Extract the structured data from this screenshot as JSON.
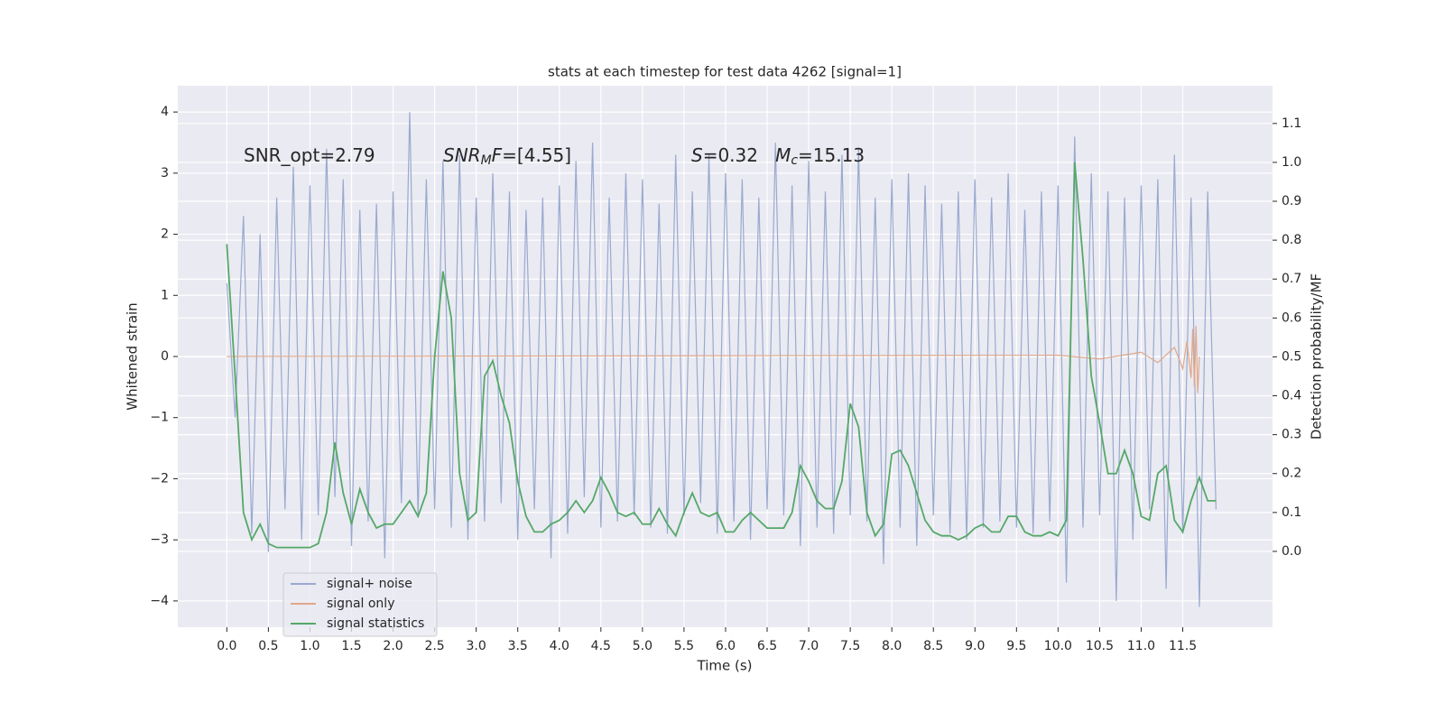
{
  "chart_data": {
    "type": "line",
    "title": "stats at each timestep for test data 4262 [signal=1]",
    "xlabel": "Time (s)",
    "ylabel": "Whitened strain",
    "y2label": "Detection probability/MF",
    "annotations": [
      [
        {
          "text": "SNR_opt=2.79"
        }
      ],
      [
        {
          "text": "SNR",
          "style": "italic"
        },
        {
          "text": "M",
          "style": "italic",
          "sub": true
        },
        {
          "text": "F",
          "style": "italic"
        },
        {
          "text": "=[4.55]"
        }
      ],
      [
        {
          "text": "S",
          "style": "italic"
        },
        {
          "text": "=0.32   "
        },
        {
          "text": "M",
          "style": "italic"
        },
        {
          "text": "c",
          "style": "italic",
          "sub": true
        },
        {
          "text": "=15.13"
        }
      ]
    ],
    "x": [
      0,
      0.1,
      0.2,
      0.3,
      0.4,
      0.5,
      0.6,
      0.7,
      0.8,
      0.9,
      1,
      1.1,
      1.2,
      1.3,
      1.4,
      1.5,
      1.6,
      1.7,
      1.8,
      1.9,
      2,
      2.1,
      2.2,
      2.3,
      2.4,
      2.5,
      2.6,
      2.7,
      2.8,
      2.9,
      3,
      3.1,
      3.2,
      3.3,
      3.4,
      3.5,
      3.6,
      3.7,
      3.8,
      3.9,
      4,
      4.1,
      4.2,
      4.3,
      4.4,
      4.5,
      4.6,
      4.7,
      4.8,
      4.9,
      5,
      5.1,
      5.2,
      5.3,
      5.4,
      5.5,
      5.6,
      5.7,
      5.8,
      5.9,
      6,
      6.1,
      6.2,
      6.3,
      6.4,
      6.5,
      6.6,
      6.7,
      6.8,
      6.9,
      7,
      7.1,
      7.2,
      7.3,
      7.4,
      7.5,
      7.6,
      7.7,
      7.8,
      7.9,
      8,
      8.1,
      8.2,
      8.3,
      8.4,
      8.5,
      8.6,
      8.7,
      8.8,
      8.9,
      9,
      9.1,
      9.2,
      9.3,
      9.4,
      9.5,
      9.6,
      9.7,
      9.8,
      9.9,
      10,
      10.1,
      10.2,
      10.3,
      10.4,
      10.5,
      10.6,
      10.7,
      10.8,
      10.9,
      11,
      11.1,
      11.2,
      11.3,
      11.4,
      11.5,
      11.6,
      11.7,
      11.8,
      11.9
    ],
    "series": [
      {
        "name": "signal+ noise",
        "color": "#99aacf",
        "values": [
          1.2,
          -1.0,
          2.3,
          -2.9,
          2.0,
          -3.2,
          2.6,
          -2.5,
          3.1,
          -3.0,
          2.8,
          -2.6,
          3.4,
          -2.3,
          2.9,
          -3.1,
          2.4,
          -2.7,
          2.5,
          -3.3,
          2.7,
          -2.4,
          4.0,
          -2.6,
          2.9,
          -2.5,
          3.2,
          -2.8,
          3.3,
          -3.0,
          2.6,
          -2.7,
          3.0,
          -2.4,
          2.7,
          -3.0,
          2.4,
          -2.5,
          2.6,
          -3.3,
          2.8,
          -2.9,
          3.2,
          -2.3,
          3.5,
          -2.8,
          2.6,
          -2.7,
          3.0,
          -2.6,
          2.9,
          -2.8,
          2.5,
          -2.9,
          3.3,
          -2.6,
          2.7,
          -2.4,
          3.3,
          -2.9,
          3.0,
          -2.7,
          2.9,
          -3.0,
          2.6,
          -2.5,
          3.5,
          -2.6,
          2.8,
          -3.1,
          3.2,
          -2.8,
          2.7,
          -2.9,
          3.3,
          -2.6,
          3.4,
          -2.7,
          2.6,
          -3.4,
          2.9,
          -2.8,
          3.0,
          -3.1,
          2.8,
          -2.6,
          2.5,
          -2.9,
          2.7,
          -3.0,
          2.9,
          -2.8,
          2.6,
          -2.7,
          3.0,
          -2.8,
          2.4,
          -2.9,
          2.7,
          -2.7,
          2.8,
          -3.7,
          3.6,
          -2.8,
          3.0,
          -2.6,
          2.7,
          -4.0,
          2.6,
          -3.0,
          2.8,
          -2.5,
          2.9,
          -3.8,
          3.3,
          -2.9,
          2.6,
          -4.1,
          2.7,
          -2.5
        ]
      },
      {
        "name": "signal only",
        "color": "#e0a88a",
        "x": [
          0,
          10,
          10.5,
          11,
          11.2,
          11.4,
          11.5,
          11.55,
          11.6,
          11.62,
          11.64,
          11.66,
          11.68,
          11.7
        ],
        "values": [
          0,
          0.02,
          -0.04,
          0.07,
          -0.1,
          0.15,
          -0.2,
          0.25,
          -0.35,
          0.45,
          -0.5,
          0.5,
          -0.6,
          0
        ]
      },
      {
        "name": "signal statistics",
        "color": "#55a868",
        "axis": "y2",
        "values": [
          0.79,
          0.45,
          0.1,
          0.03,
          0.07,
          0.02,
          0.01,
          0.01,
          0.01,
          0.01,
          0.01,
          0.02,
          0.1,
          0.28,
          0.15,
          0.07,
          0.16,
          0.1,
          0.06,
          0.07,
          0.07,
          0.1,
          0.13,
          0.09,
          0.15,
          0.5,
          0.72,
          0.6,
          0.2,
          0.08,
          0.1,
          0.45,
          0.49,
          0.4,
          0.33,
          0.18,
          0.09,
          0.05,
          0.05,
          0.07,
          0.08,
          0.1,
          0.13,
          0.1,
          0.13,
          0.19,
          0.15,
          0.1,
          0.09,
          0.1,
          0.07,
          0.07,
          0.11,
          0.07,
          0.04,
          0.1,
          0.15,
          0.1,
          0.09,
          0.1,
          0.05,
          0.05,
          0.08,
          0.1,
          0.08,
          0.06,
          0.06,
          0.06,
          0.1,
          0.22,
          0.18,
          0.13,
          0.11,
          0.11,
          0.18,
          0.38,
          0.32,
          0.1,
          0.04,
          0.07,
          0.25,
          0.26,
          0.22,
          0.15,
          0.08,
          0.05,
          0.04,
          0.04,
          0.03,
          0.04,
          0.06,
          0.07,
          0.05,
          0.05,
          0.09,
          0.09,
          0.05,
          0.04,
          0.04,
          0.05,
          0.04,
          0.08,
          1.0,
          0.75,
          0.45,
          0.33,
          0.2,
          0.2,
          0.26,
          0.2,
          0.09,
          0.08,
          0.2,
          0.22,
          0.08,
          0.05,
          0.13,
          0.19,
          0.13,
          0.13
        ]
      }
    ],
    "xlim": [
      -0.59,
      12.58
    ],
    "ylim": [
      -4.43,
      4.43
    ],
    "y2lim": [
      -0.195,
      1.197
    ],
    "xticks": [
      {
        "value": 0,
        "label": "0.0"
      },
      0.5,
      {
        "value": 1,
        "label": "1.0"
      },
      1.5,
      {
        "value": 2,
        "label": "2.0"
      },
      2.5,
      {
        "value": 3,
        "label": "3.0"
      },
      3.5,
      {
        "value": 4,
        "label": "4.0"
      },
      4.5,
      {
        "value": 5,
        "label": "5.0"
      },
      5.5,
      {
        "value": 6,
        "label": "6.0"
      },
      6.5,
      {
        "value": 7,
        "label": "7.0"
      },
      7.5,
      {
        "value": 8,
        "label": "8.0"
      },
      8.5,
      {
        "value": 9,
        "label": "9.0"
      },
      9.5,
      {
        "value": 10,
        "label": "10.0"
      },
      10.5,
      {
        "value": 11,
        "label": "11.0"
      },
      11.5
    ],
    "yticks": [
      {
        "value": -4,
        "label": "−4"
      },
      {
        "value": -3,
        "label": "−3"
      },
      {
        "value": -2,
        "label": "−2"
      },
      {
        "value": -1,
        "label": "−1"
      },
      0,
      1,
      2,
      3,
      4
    ],
    "y2ticks": [
      {
        "value": 0,
        "label": "0.0"
      },
      0.1,
      0.2,
      0.3,
      0.4,
      0.5,
      0.6,
      0.7,
      0.8,
      0.9,
      {
        "value": 1,
        "label": "1.0"
      },
      1.1
    ],
    "grid": true,
    "legend": "lower left"
  }
}
